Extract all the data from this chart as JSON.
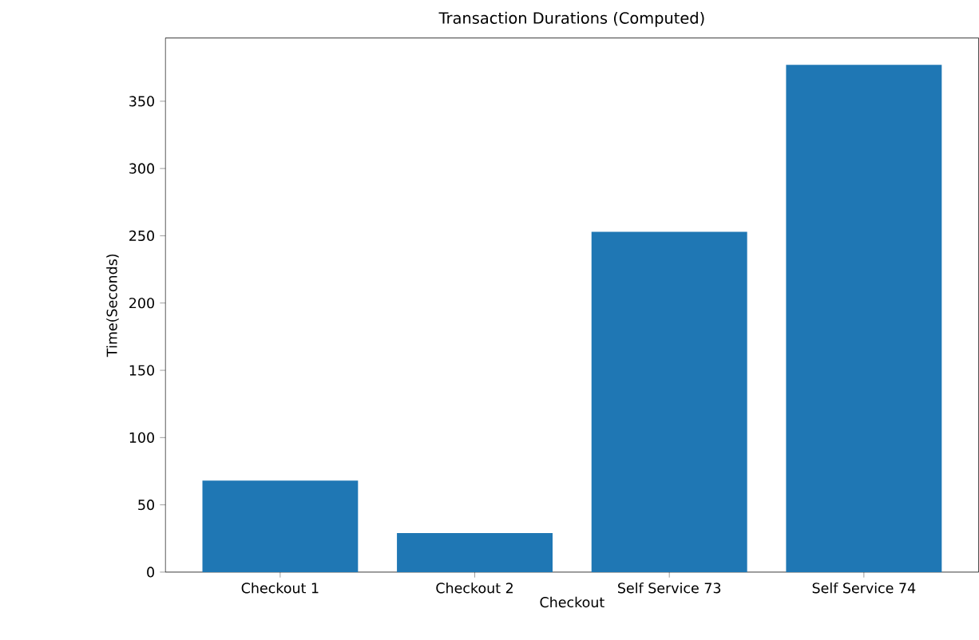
{
  "chart_data": {
    "type": "bar",
    "title": "Transaction Durations (Computed)",
    "xlabel": "Checkout",
    "ylabel": "Time(Seconds)",
    "categories": [
      "Checkout 1",
      "Checkout 2",
      "Self Service 73",
      "Self Service 74"
    ],
    "values": [
      68,
      29,
      253,
      377
    ],
    "color": "#1f77b4",
    "ylim": [
      0,
      397
    ],
    "yticks": [
      0,
      50,
      100,
      150,
      200,
      250,
      300,
      350
    ],
    "grid": false
  }
}
